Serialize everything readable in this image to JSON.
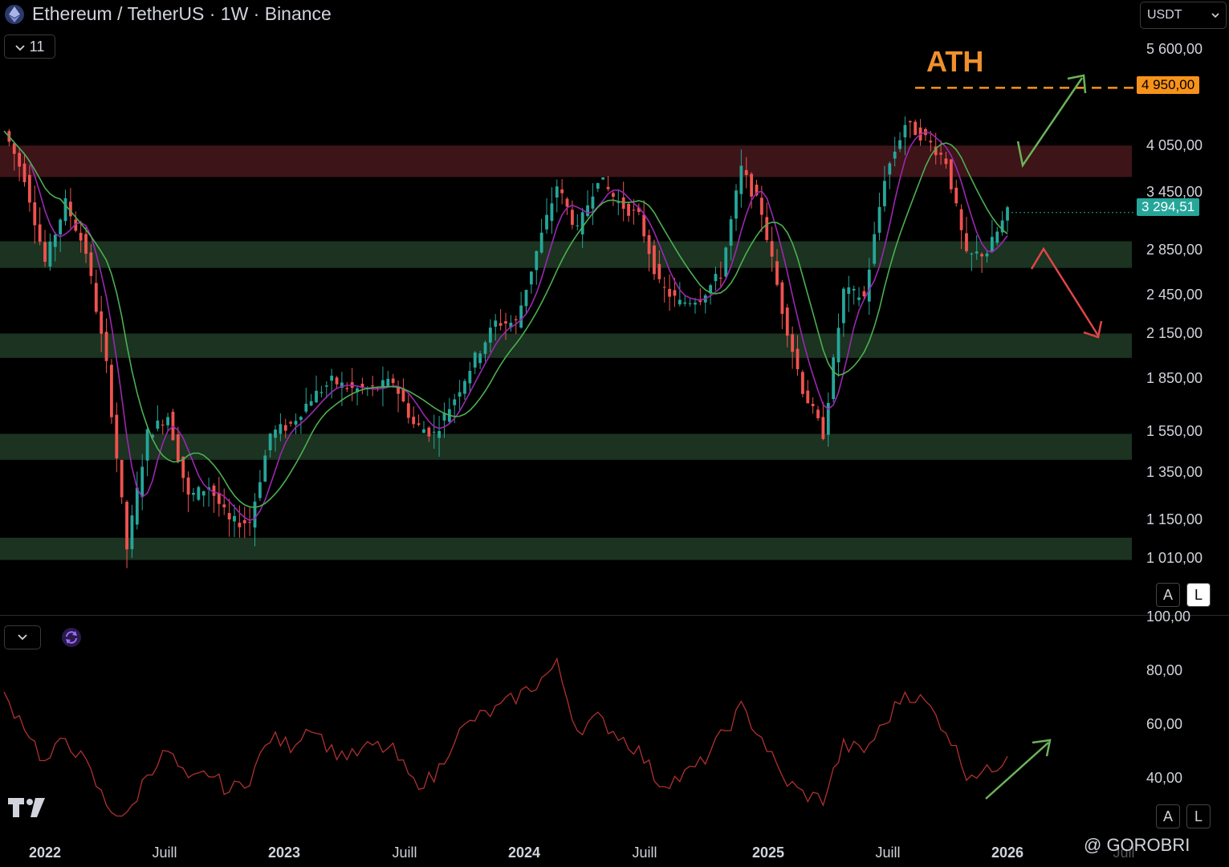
{
  "header": {
    "title": "Ethereum / TetherUS · 1W · Binance",
    "indicator_count": "11",
    "currency": "USDT"
  },
  "price_axis": {
    "labels": [
      "5 600,00",
      "4 050,00",
      "3 450,00",
      "2 850,00",
      "2 450,00",
      "2 150,00",
      "1 850,00",
      "1 550,00",
      "1 350,00",
      "1 150,00",
      "1 010,00"
    ],
    "values": [
      5600,
      4050,
      3450,
      2850,
      2450,
      2150,
      1850,
      1550,
      1350,
      1150,
      1010
    ]
  },
  "ath": {
    "label": "ATH",
    "price_tag": "4 950,00",
    "value": 4950
  },
  "current_price": {
    "tag": "3 294,51",
    "value": 3294.51
  },
  "scale_buttons": {
    "auto": "A",
    "log": "L"
  },
  "rsi_axis": {
    "labels": [
      "100,00",
      "80,00",
      "60,00",
      "40,00"
    ],
    "values": [
      100,
      80,
      60,
      40
    ]
  },
  "time_axis": {
    "labels": [
      "2022",
      "Juill",
      "2023",
      "Juill",
      "2024",
      "Juill",
      "2025",
      "Juill",
      "2026",
      "Juil"
    ],
    "years": [
      "2022",
      "2023",
      "2024",
      "2025",
      "2026"
    ]
  },
  "watermark": "@ GOROBRI",
  "colors": {
    "bull": "#26a69a",
    "bear": "#ef5350",
    "resistance_zone": "#3d1418",
    "support_zone": "#1b3320",
    "ma_fast": "#9c27b0",
    "ma_slow": "#4caf50",
    "ath_line": "#f7931a",
    "rsi_line": "#b03030",
    "up_arrow": "#6cb35a",
    "down_arrow": "#e04646"
  },
  "chart_data": {
    "type": "line",
    "title": "Ethereum / TetherUS · 1W · Binance",
    "scale": "log",
    "ylim": [
      900,
      6000
    ],
    "x_range": [
      "2021-12",
      "2026-03"
    ],
    "zones": [
      {
        "type": "resistance",
        "low": 3700,
        "high": 4100
      },
      {
        "type": "support",
        "low": 2750,
        "high": 3000
      },
      {
        "type": "support",
        "low": 2050,
        "high": 2220
      },
      {
        "type": "support",
        "low": 1470,
        "high": 1600
      },
      {
        "type": "support",
        "low": 1060,
        "high": 1140
      }
    ],
    "horizontal_lines": [
      {
        "label": "ATH",
        "value": 4950
      }
    ],
    "series": [
      {
        "x": [
          "2021-12",
          "2022-01",
          "2022-02",
          "2022-03",
          "2022-04",
          "2022-05",
          "2022-06",
          "2022-07",
          "2022-08",
          "2022-09",
          "2022-10",
          "2022-11",
          "2022-12",
          "2023-01",
          "2023-02",
          "2023-03",
          "2023-04",
          "2023-05",
          "2023-06",
          "2023-07",
          "2023-08",
          "2023-09",
          "2023-10",
          "2023-11",
          "2023-12",
          "2024-01",
          "2024-02",
          "2024-03",
          "2024-04",
          "2024-05",
          "2024-06",
          "2024-07",
          "2024-08",
          "2024-09",
          "2024-10",
          "2024-11",
          "2024-12",
          "2025-01",
          "2025-02",
          "2025-03",
          "2025-04",
          "2025-05",
          "2025-06",
          "2025-07",
          "2025-08",
          "2025-09",
          "2025-10",
          "2025-11",
          "2025-12",
          "2026-01"
        ],
        "values": [
          4300,
          3700,
          2800,
          3400,
          2900,
          2000,
          1100,
          1600,
          1700,
          1300,
          1350,
          1200,
          1200,
          1600,
          1650,
          1800,
          1900,
          1850,
          1850,
          1900,
          1650,
          1600,
          1800,
          2050,
          2300,
          2300,
          2900,
          3600,
          3100,
          3700,
          3400,
          3250,
          2600,
          2450,
          2500,
          2700,
          3800,
          3300,
          2400,
          1850,
          1600,
          2550,
          2500,
          3700,
          4400,
          4200,
          3900,
          2850,
          2900,
          3294.51
        ]
      }
    ],
    "rsi": {
      "ylim": [
        0,
        100
      ],
      "values": [
        70,
        60,
        45,
        55,
        45,
        30,
        25,
        42,
        50,
        38,
        42,
        35,
        40,
        55,
        52,
        60,
        50,
        48,
        52,
        50,
        38,
        40,
        55,
        62,
        65,
        70,
        75,
        82,
        58,
        62,
        56,
        50,
        38,
        40,
        45,
        55,
        66,
        55,
        40,
        34,
        32,
        52,
        50,
        60,
        72,
        68,
        58,
        42,
        42,
        48
      ]
    }
  }
}
